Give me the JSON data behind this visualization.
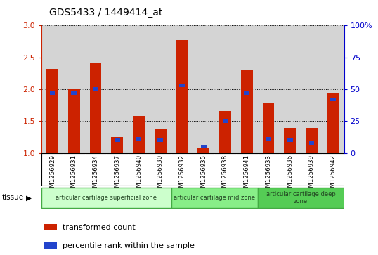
{
  "title": "GDS5433 / 1449414_at",
  "samples": [
    "GSM1256929",
    "GSM1256931",
    "GSM1256934",
    "GSM1256937",
    "GSM1256940",
    "GSM1256930",
    "GSM1256932",
    "GSM1256935",
    "GSM1256938",
    "GSM1256941",
    "GSM1256933",
    "GSM1256936",
    "GSM1256939",
    "GSM1256942"
  ],
  "red_values": [
    2.32,
    2.0,
    2.42,
    1.25,
    1.58,
    1.38,
    2.77,
    1.09,
    1.66,
    2.31,
    1.79,
    1.4,
    1.4,
    1.95
  ],
  "blue_pct": [
    47,
    47,
    50,
    10,
    11,
    10,
    53,
    5,
    25,
    47,
    11,
    10,
    8,
    42
  ],
  "ylim_left": [
    1.0,
    3.0
  ],
  "ylim_right": [
    0,
    100
  ],
  "yticks_left": [
    1.0,
    1.5,
    2.0,
    2.5,
    3.0
  ],
  "yticks_right": [
    0,
    25,
    50,
    75,
    100
  ],
  "tissue_groups": [
    {
      "label": "articular cartilage superficial zone",
      "start": 0,
      "end": 6,
      "color": "#ccffcc",
      "edgecolor": "#44aa44"
    },
    {
      "label": "articular cartilage mid zone",
      "start": 6,
      "end": 10,
      "color": "#88ee88",
      "edgecolor": "#44aa44"
    },
    {
      "label": "articular cartilage deep\nzone",
      "start": 10,
      "end": 14,
      "color": "#55cc55",
      "edgecolor": "#44aa44"
    }
  ],
  "legend_red_label": "transformed count",
  "legend_blue_label": "percentile rank within the sample",
  "bar_width": 0.55,
  "red_color": "#cc2200",
  "blue_color": "#2244cc",
  "sample_bg_color": "#d4d4d4",
  "plot_bg": "#ffffff",
  "grid_color": "#000000",
  "left_tick_color": "#cc2200",
  "right_tick_color": "#0000cc"
}
